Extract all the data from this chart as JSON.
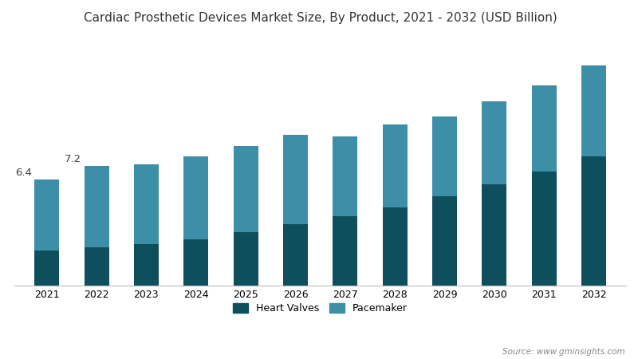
{
  "title": "Cardiac Prosthetic Devices Market Size, By Product, 2021 - 2032 (USD Billion)",
  "years": [
    2021,
    2022,
    2023,
    2024,
    2025,
    2026,
    2027,
    2028,
    2029,
    2030,
    2031,
    2032
  ],
  "heart_valves": [
    2.1,
    2.3,
    2.5,
    2.8,
    3.2,
    3.7,
    4.2,
    4.7,
    5.4,
    6.1,
    6.9,
    7.8
  ],
  "pacemaker": [
    4.3,
    4.9,
    4.8,
    5.0,
    5.2,
    5.4,
    4.8,
    5.0,
    4.8,
    5.0,
    5.2,
    5.5
  ],
  "total_labels": {
    "2021": "6.4",
    "2022": "7.2"
  },
  "heart_valves_color": "#0d4f5c",
  "pacemaker_color": "#3d8fa8",
  "background_color": "#ffffff",
  "title_fontsize": 11,
  "bar_width": 0.5,
  "ylim": [
    0,
    15
  ],
  "legend_labels": [
    "Heart Valves",
    "Pacemaker"
  ],
  "source_text": "Source: www.gminsights.com"
}
